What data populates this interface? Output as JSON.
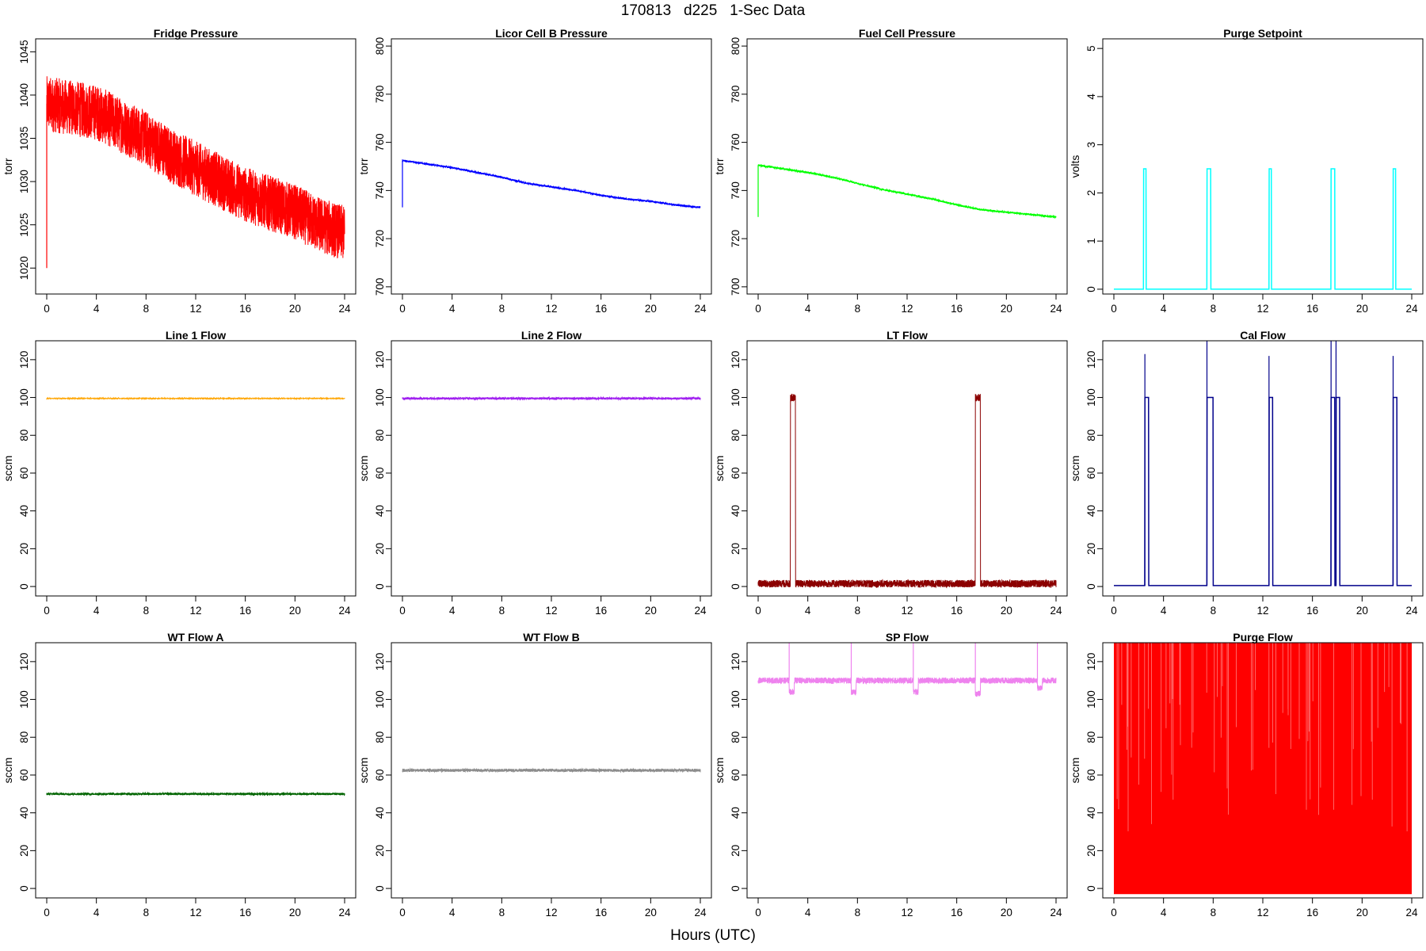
{
  "header": {
    "title": "170813   d225   1-Sec Data"
  },
  "footer": {
    "xlabel": "Hours (UTC)"
  },
  "chart_data": [
    {
      "type": "line",
      "title": "Fridge Pressure",
      "ylabel": "torr",
      "color": "#ff0000",
      "xlim": [
        0,
        24
      ],
      "ylim": [
        1017,
        1046.5
      ],
      "xticks": [
        0,
        4,
        8,
        12,
        16,
        20,
        24
      ],
      "yticks": [
        1020,
        1025,
        1030,
        1035,
        1040,
        1045
      ],
      "x": [
        0,
        2,
        4,
        6,
        8,
        10,
        12,
        14,
        16,
        18,
        20,
        22,
        24
      ],
      "values": [
        1039,
        1038.5,
        1038,
        1036.5,
        1035,
        1033,
        1031.5,
        1030,
        1028.5,
        1027.5,
        1026.5,
        1025,
        1024
      ],
      "noise": 3.2,
      "spikes": [
        [
          0,
          1020
        ]
      ]
    },
    {
      "type": "line",
      "title": "Licor Cell B Pressure",
      "ylabel": "torr",
      "color": "#0000ff",
      "xlim": [
        0,
        24
      ],
      "ylim": [
        697,
        803
      ],
      "xticks": [
        0,
        4,
        8,
        12,
        16,
        20,
        24
      ],
      "yticks": [
        700,
        720,
        740,
        760,
        780,
        800
      ],
      "x": [
        0,
        2,
        4,
        6,
        8,
        10,
        12,
        14,
        16,
        18,
        20,
        22,
        24
      ],
      "values": [
        752.5,
        751,
        749.5,
        747.5,
        745.5,
        743,
        741.5,
        740,
        738,
        736.5,
        735.5,
        734,
        733
      ],
      "noise": 0.4,
      "spikes": [
        [
          0,
          733
        ]
      ]
    },
    {
      "type": "line",
      "title": "Fuel Cell Pressure",
      "ylabel": "torr",
      "color": "#00ff00",
      "xlim": [
        0,
        24
      ],
      "ylim": [
        697,
        803
      ],
      "xticks": [
        0,
        4,
        8,
        12,
        16,
        20,
        24
      ],
      "yticks": [
        700,
        720,
        740,
        760,
        780,
        800
      ],
      "x": [
        0,
        2,
        4,
        6,
        8,
        10,
        12,
        14,
        16,
        18,
        20,
        22,
        24
      ],
      "values": [
        750.5,
        749,
        747.5,
        745.5,
        743,
        740.5,
        738.5,
        736.5,
        734,
        732,
        731,
        730,
        729
      ],
      "noise": 0.4,
      "spikes": [
        [
          0,
          729
        ]
      ]
    },
    {
      "type": "line",
      "title": "Purge Setpoint",
      "ylabel": "volts",
      "color": "#00ffff",
      "xlim": [
        0,
        24
      ],
      "ylim": [
        -0.1,
        5.2
      ],
      "xticks": [
        0,
        4,
        8,
        12,
        16,
        20,
        24
      ],
      "yticks": [
        0,
        1,
        2,
        3,
        4,
        5
      ],
      "base": 0,
      "noise": 0,
      "pulses": [
        [
          2.4,
          2.6,
          2.5
        ],
        [
          7.5,
          7.8,
          2.5
        ],
        [
          12.5,
          12.7,
          2.5
        ],
        [
          17.5,
          17.8,
          2.5
        ],
        [
          22.5,
          22.7,
          2.5
        ]
      ]
    },
    {
      "type": "line",
      "title": "Line 1 Flow",
      "ylabel": "sccm",
      "color": "#ffa500",
      "xlim": [
        0,
        24
      ],
      "ylim": [
        -5,
        130
      ],
      "xticks": [
        0,
        4,
        8,
        12,
        16,
        20,
        24
      ],
      "yticks": [
        0,
        20,
        40,
        60,
        80,
        100,
        120
      ],
      "base": 99.5,
      "noise": 0.2
    },
    {
      "type": "line",
      "title": "Line 2 Flow",
      "ylabel": "sccm",
      "color": "#a020f0",
      "xlim": [
        0,
        24
      ],
      "ylim": [
        -5,
        130
      ],
      "xticks": [
        0,
        4,
        8,
        12,
        16,
        20,
        24
      ],
      "yticks": [
        0,
        20,
        40,
        60,
        80,
        100,
        120
      ],
      "base": 99.5,
      "noise": 0.6
    },
    {
      "type": "line",
      "title": "LT Flow",
      "ylabel": "sccm",
      "color": "#8b0000",
      "xlim": [
        0,
        24
      ],
      "ylim": [
        -5,
        130
      ],
      "xticks": [
        0,
        4,
        8,
        12,
        16,
        20,
        24
      ],
      "yticks": [
        0,
        20,
        40,
        60,
        80,
        100,
        120
      ],
      "base": 1.5,
      "noise": 2,
      "pulses": [
        [
          2.6,
          3.0,
          100
        ],
        [
          17.5,
          17.9,
          100
        ]
      ]
    },
    {
      "type": "line",
      "title": "Cal Flow",
      "ylabel": "sccm",
      "color": "#00008b",
      "xlim": [
        0,
        24
      ],
      "ylim": [
        -5,
        130
      ],
      "xticks": [
        0,
        4,
        8,
        12,
        16,
        20,
        24
      ],
      "yticks": [
        0,
        20,
        40,
        60,
        80,
        100,
        120
      ],
      "base": 0.5,
      "noise": 0,
      "pulses": [
        [
          2.5,
          2.8,
          100
        ],
        [
          7.5,
          8.0,
          100
        ],
        [
          12.5,
          12.8,
          100
        ],
        [
          17.5,
          17.8,
          100
        ],
        [
          17.9,
          18.2,
          100
        ],
        [
          22.5,
          22.8,
          100
        ]
      ],
      "spikes": [
        [
          2.5,
          123
        ],
        [
          7.5,
          130
        ],
        [
          12.5,
          122
        ],
        [
          17.5,
          130
        ],
        [
          17.9,
          130
        ],
        [
          22.5,
          122
        ]
      ]
    },
    {
      "type": "line",
      "title": "WT Flow A",
      "ylabel": "sccm",
      "color": "#006400",
      "xlim": [
        0,
        24
      ],
      "ylim": [
        -5,
        130
      ],
      "xticks": [
        0,
        4,
        8,
        12,
        16,
        20,
        24
      ],
      "yticks": [
        0,
        20,
        40,
        60,
        80,
        100,
        120
      ],
      "base": 50,
      "noise": 0.6
    },
    {
      "type": "line",
      "title": "WT Flow B",
      "ylabel": "sccm",
      "color": "#8c8c8c",
      "xlim": [
        0,
        24
      ],
      "ylim": [
        -5,
        130
      ],
      "xticks": [
        0,
        4,
        8,
        12,
        16,
        20,
        24
      ],
      "yticks": [
        0,
        20,
        40,
        60,
        80,
        100,
        120
      ],
      "base": 62.5,
      "noise": 0.8
    },
    {
      "type": "line",
      "title": "SP Flow",
      "ylabel": "sccm",
      "color": "#ee82ee",
      "xlim": [
        0,
        24
      ],
      "ylim": [
        -5,
        130
      ],
      "xticks": [
        0,
        4,
        8,
        12,
        16,
        20,
        24
      ],
      "yticks": [
        0,
        20,
        40,
        60,
        80,
        100,
        120
      ],
      "base": 110,
      "noise": 1.6,
      "dips": [
        [
          2.5,
          2.9,
          104
        ],
        [
          7.5,
          7.9,
          104
        ],
        [
          12.5,
          12.9,
          104
        ],
        [
          17.5,
          17.9,
          103
        ],
        [
          22.5,
          22.9,
          106
        ]
      ],
      "spikes": [
        [
          2.5,
          130
        ],
        [
          7.5,
          130
        ],
        [
          12.5,
          130
        ],
        [
          17.5,
          130
        ],
        [
          22.5,
          130
        ]
      ]
    },
    {
      "type": "line",
      "title": "Purge Flow",
      "ylabel": "sccm",
      "color": "#ff0000",
      "xlim": [
        0,
        24
      ],
      "ylim": [
        -5,
        130
      ],
      "xticks": [
        0,
        4,
        8,
        12,
        16,
        20,
        24
      ],
      "yticks": [
        0,
        20,
        40,
        60,
        80,
        100,
        120
      ],
      "fill_range": [
        -3,
        130
      ]
    }
  ]
}
